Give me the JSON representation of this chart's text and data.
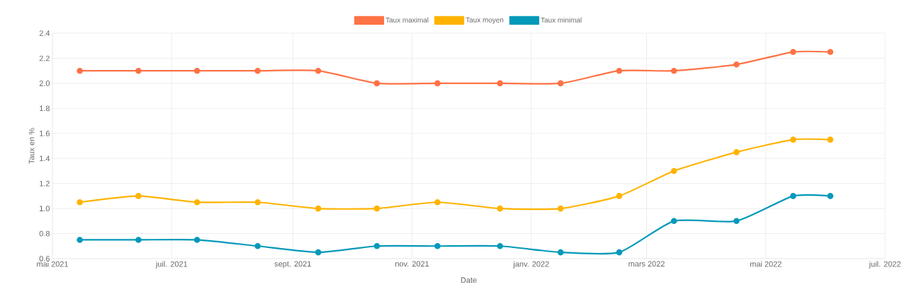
{
  "chart_data": {
    "type": "line",
    "xlabel": "Date",
    "ylabel": "Taux en %",
    "x": [
      "2021-05-15",
      "2021-06-14",
      "2021-07-14",
      "2021-08-14",
      "2021-09-14",
      "2021-10-14",
      "2021-11-14",
      "2021-12-16",
      "2022-01-16",
      "2022-02-15",
      "2022-03-15",
      "2022-04-16",
      "2022-05-15",
      "2022-06-03"
    ],
    "series": [
      {
        "name": "Taux maximal",
        "color": "#ff7245",
        "values": [
          2.1,
          2.1,
          2.1,
          2.1,
          2.1,
          2.0,
          2.0,
          2.0,
          2.0,
          2.1,
          2.1,
          2.15,
          2.25,
          2.25
        ]
      },
      {
        "name": "Taux moyen",
        "color": "#ffb300",
        "values": [
          1.05,
          1.1,
          1.05,
          1.05,
          1.0,
          1.0,
          1.05,
          1.0,
          1.0,
          1.1,
          1.3,
          1.45,
          1.55,
          1.55
        ]
      },
      {
        "name": "Taux minimal",
        "color": "#0399b9",
        "values": [
          0.75,
          0.75,
          0.75,
          0.7,
          0.65,
          0.7,
          0.7,
          0.7,
          0.65,
          0.65,
          0.9,
          0.9,
          1.1,
          1.1
        ]
      }
    ],
    "xlim": [
      "2021-05",
      "2022-07"
    ],
    "xticks": [
      {
        "value": "2021-05",
        "label": "mai 2021"
      },
      {
        "value": "2021-07",
        "label": "juil. 2021"
      },
      {
        "value": "2021-09",
        "label": "sept. 2021"
      },
      {
        "value": "2021-11",
        "label": "nov. 2021"
      },
      {
        "value": "2022-01",
        "label": "janv. 2022"
      },
      {
        "value": "2022-03",
        "label": "mars 2022"
      },
      {
        "value": "2022-05",
        "label": "mai 2022"
      },
      {
        "value": "2022-07",
        "label": "juil. 2022"
      }
    ],
    "ylim": [
      0.6,
      2.4
    ],
    "yticks": [
      0.6,
      0.8,
      {
        "value": 1.0,
        "label": "1.0"
      },
      1.2,
      1.4,
      1.6,
      1.8,
      {
        "value": 2.0,
        "label": "2.0"
      },
      2.2,
      2.4
    ],
    "grid": true,
    "legend": "top",
    "marker": "circle",
    "line_style": "solid"
  }
}
